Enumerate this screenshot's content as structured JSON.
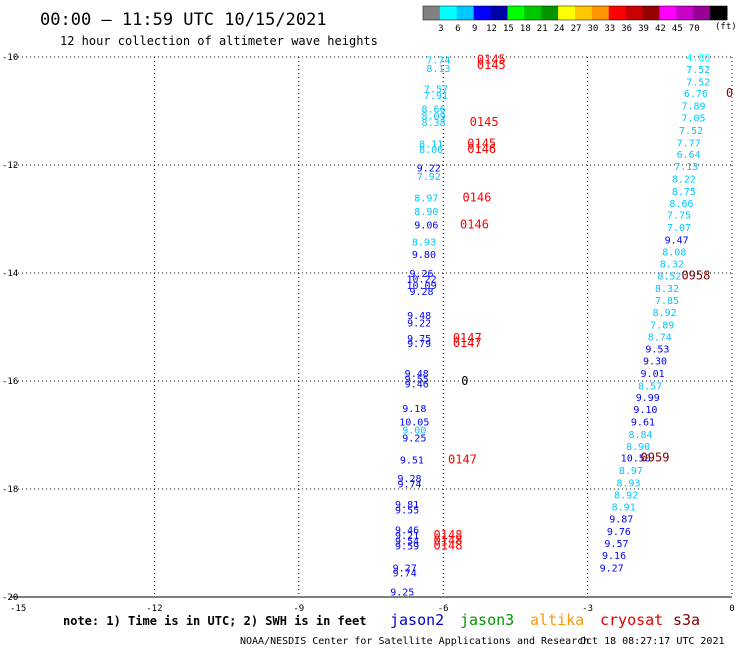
{
  "header": {
    "title": "00:00 – 11:59 UTC 10/15/2021",
    "subtitle": "12 hour collection of altimeter wave heights"
  },
  "colorbar": {
    "unit": "(ft)",
    "colors": [
      "#808080",
      "#00ffff",
      "#00c8ff",
      "#0000ff",
      "#0000aa",
      "#00ff00",
      "#00c800",
      "#009600",
      "#ffff00",
      "#ffc800",
      "#ff9600",
      "#ff0000",
      "#c80000",
      "#960000",
      "#ff00ff",
      "#c800c8",
      "#960096",
      "#000000"
    ],
    "labels": [
      "3",
      "6",
      "9",
      "12",
      "15",
      "18",
      "21",
      "24",
      "27",
      "30",
      "33",
      "36",
      "39",
      "42",
      "45",
      "70"
    ]
  },
  "chart_data": {
    "type": "scatter",
    "xlim": [
      -15,
      0
    ],
    "ylim": [
      -20,
      -10
    ],
    "x_ticks": [
      "-15",
      "-12",
      "-9",
      "-6",
      "-3",
      "0"
    ],
    "y_ticks": [
      "-10",
      "-12",
      "-14",
      "-16",
      "-18",
      "-20"
    ],
    "grid": true,
    "series": [
      {
        "name": "jason2",
        "points": [
          {
            "x": -6.1,
            "y": -10.05,
            "label": "7.74",
            "color": "#00c8ff"
          },
          {
            "x": -6.1,
            "y": -10.2,
            "label": "8.13",
            "color": "#00c8ff"
          },
          {
            "x": -6.15,
            "y": -10.58,
            "label": "7.57",
            "color": "#00c8ff"
          },
          {
            "x": -6.15,
            "y": -10.7,
            "label": "7.91",
            "color": "#00c8ff"
          },
          {
            "x": -6.2,
            "y": -10.95,
            "label": "8.66",
            "color": "#00c8ff"
          },
          {
            "x": -6.2,
            "y": -11.08,
            "label": "8.09",
            "color": "#00c8ff"
          },
          {
            "x": -6.2,
            "y": -11.2,
            "label": "8.38",
            "color": "#00c8ff"
          },
          {
            "x": -6.25,
            "y": -11.6,
            "label": "8.11",
            "color": "#00c8ff"
          },
          {
            "x": -6.25,
            "y": -11.7,
            "label": "8.06",
            "color": "#00c8ff"
          },
          {
            "x": -6.3,
            "y": -12.05,
            "label": "9.22",
            "color": "#0000ff"
          },
          {
            "x": -6.3,
            "y": -12.2,
            "label": "7.92",
            "color": "#00c8ff"
          },
          {
            "x": -6.35,
            "y": -12.6,
            "label": "8.97",
            "color": "#00c8ff"
          },
          {
            "x": -6.35,
            "y": -12.85,
            "label": "8.90",
            "color": "#00c8ff"
          },
          {
            "x": -6.35,
            "y": -13.1,
            "label": "9.06",
            "color": "#0000ff"
          },
          {
            "x": -6.4,
            "y": -13.42,
            "label": "8.93",
            "color": "#00c8ff"
          },
          {
            "x": -6.4,
            "y": -13.65,
            "label": "9.80",
            "color": "#0000ff"
          },
          {
            "x": -6.45,
            "y": -14.0,
            "label": "9.26",
            "color": "#0000ff"
          },
          {
            "x": -6.45,
            "y": -14.1,
            "label": "10.22",
            "color": "#0000ff"
          },
          {
            "x": -6.45,
            "y": -14.22,
            "label": "10.09",
            "color": "#0000ff"
          },
          {
            "x": -6.45,
            "y": -14.33,
            "label": "9.28",
            "color": "#0000ff"
          },
          {
            "x": -6.5,
            "y": -14.78,
            "label": "9.48",
            "color": "#0000ff"
          },
          {
            "x": -6.5,
            "y": -14.92,
            "label": "9.22",
            "color": "#0000ff"
          },
          {
            "x": -6.5,
            "y": -15.2,
            "label": "9.75",
            "color": "#0000ff"
          },
          {
            "x": -6.5,
            "y": -15.3,
            "label": "9.79",
            "color": "#0000ff"
          },
          {
            "x": -6.55,
            "y": -15.85,
            "label": "9.48",
            "color": "#0000ff"
          },
          {
            "x": -6.55,
            "y": -15.95,
            "label": "9.55",
            "color": "#0000ff"
          },
          {
            "x": -6.55,
            "y": -16.05,
            "label": "9.46",
            "color": "#0000ff"
          },
          {
            "x": -6.6,
            "y": -16.5,
            "label": "9.18",
            "color": "#0000ff"
          },
          {
            "x": -6.6,
            "y": -16.75,
            "label": "10.05",
            "color": "#0000ff"
          },
          {
            "x": -6.6,
            "y": -16.9,
            "label": "9.00",
            "color": "#00c8ff"
          },
          {
            "x": -6.6,
            "y": -17.05,
            "label": "9.25",
            "color": "#0000ff"
          },
          {
            "x": -6.65,
            "y": -17.45,
            "label": "9.51",
            "color": "#0000ff"
          },
          {
            "x": -6.7,
            "y": -17.8,
            "label": "9.28",
            "color": "#0000ff"
          },
          {
            "x": -6.7,
            "y": -17.9,
            "label": "9.74",
            "color": "#0000ff"
          },
          {
            "x": -6.75,
            "y": -18.28,
            "label": "9.81",
            "color": "#0000ff"
          },
          {
            "x": -6.75,
            "y": -18.38,
            "label": "9.55",
            "color": "#0000ff"
          },
          {
            "x": -6.75,
            "y": -18.75,
            "label": "9.46",
            "color": "#0000ff"
          },
          {
            "x": -6.75,
            "y": -18.85,
            "label": "9.21",
            "color": "#0000ff"
          },
          {
            "x": -6.75,
            "y": -18.95,
            "label": "9.54",
            "color": "#0000ff"
          },
          {
            "x": -6.75,
            "y": -19.05,
            "label": "9.59",
            "color": "#0000ff"
          },
          {
            "x": -6.8,
            "y": -19.45,
            "label": "9.27",
            "color": "#0000ff"
          },
          {
            "x": -6.8,
            "y": -19.55,
            "label": "9.74",
            "color": "#0000ff"
          },
          {
            "x": -6.85,
            "y": -19.9,
            "label": "9.25",
            "color": "#0000ff"
          }
        ]
      },
      {
        "name": "cryosat",
        "points": [
          {
            "x": -0.7,
            "y": -10.0,
            "label": "4.80",
            "color": "#00ffff"
          },
          {
            "x": -0.7,
            "y": -10.22,
            "label": "7.52",
            "color": "#00c8ff"
          },
          {
            "x": -0.7,
            "y": -10.45,
            "label": "7.52",
            "color": "#00c8ff"
          },
          {
            "x": -0.75,
            "y": -10.67,
            "label": "6.76",
            "color": "#00c8ff"
          },
          {
            "x": -0.8,
            "y": -10.9,
            "label": "7.89",
            "color": "#00c8ff"
          },
          {
            "x": -0.8,
            "y": -11.12,
            "label": "7.05",
            "color": "#00c8ff"
          },
          {
            "x": -0.85,
            "y": -11.35,
            "label": "7.52",
            "color": "#00c8ff"
          },
          {
            "x": -0.9,
            "y": -11.58,
            "label": "7.77",
            "color": "#00c8ff"
          },
          {
            "x": -0.9,
            "y": -11.8,
            "label": "6.64",
            "color": "#00c8ff"
          },
          {
            "x": -0.95,
            "y": -12.02,
            "label": "7.13",
            "color": "#00c8ff"
          },
          {
            "x": -1.0,
            "y": -12.25,
            "label": "8.22",
            "color": "#00c8ff"
          },
          {
            "x": -1.0,
            "y": -12.48,
            "label": "8.75",
            "color": "#00c8ff"
          },
          {
            "x": -1.05,
            "y": -12.7,
            "label": "8.66",
            "color": "#00c8ff"
          },
          {
            "x": -1.1,
            "y": -12.92,
            "label": "7.75",
            "color": "#00c8ff"
          },
          {
            "x": -1.1,
            "y": -13.15,
            "label": "7.07",
            "color": "#00c8ff"
          },
          {
            "x": -1.15,
            "y": -13.38,
            "label": "9.47",
            "color": "#0000ff"
          },
          {
            "x": -1.2,
            "y": -13.6,
            "label": "8.08",
            "color": "#00c8ff"
          },
          {
            "x": -1.25,
            "y": -13.82,
            "label": "8.32",
            "color": "#00c8ff"
          },
          {
            "x": -1.3,
            "y": -14.05,
            "label": "8.52",
            "color": "#00c8ff"
          },
          {
            "x": -1.35,
            "y": -14.28,
            "label": "8.32",
            "color": "#00c8ff"
          },
          {
            "x": -1.35,
            "y": -14.5,
            "label": "7.85",
            "color": "#00c8ff"
          },
          {
            "x": -1.4,
            "y": -14.72,
            "label": "8.92",
            "color": "#00c8ff"
          },
          {
            "x": -1.45,
            "y": -14.95,
            "label": "7.89",
            "color": "#00c8ff"
          },
          {
            "x": -1.5,
            "y": -15.18,
            "label": "8.74",
            "color": "#00c8ff"
          },
          {
            "x": -1.55,
            "y": -15.4,
            "label": "9.53",
            "color": "#0000ff"
          },
          {
            "x": -1.6,
            "y": -15.62,
            "label": "9.30",
            "color": "#0000ff"
          },
          {
            "x": -1.65,
            "y": -15.85,
            "label": "9.01",
            "color": "#0000ff"
          },
          {
            "x": -1.7,
            "y": -16.08,
            "label": "8.57",
            "color": "#00c8ff"
          },
          {
            "x": -1.75,
            "y": -16.3,
            "label": "9.99",
            "color": "#0000ff"
          },
          {
            "x": -1.8,
            "y": -16.52,
            "label": "9.10",
            "color": "#0000ff"
          },
          {
            "x": -1.85,
            "y": -16.75,
            "label": "9.61",
            "color": "#0000ff"
          },
          {
            "x": -1.9,
            "y": -16.98,
            "label": "8.84",
            "color": "#00c8ff"
          },
          {
            "x": -1.95,
            "y": -17.2,
            "label": "8.90",
            "color": "#00c8ff"
          },
          {
            "x": -2.0,
            "y": -17.42,
            "label": "10.50",
            "color": "#0000ff"
          },
          {
            "x": -2.1,
            "y": -17.65,
            "label": "8.97",
            "color": "#00c8ff"
          },
          {
            "x": -2.15,
            "y": -17.88,
            "label": "8.93",
            "color": "#00c8ff"
          },
          {
            "x": -2.2,
            "y": -18.1,
            "label": "8.92",
            "color": "#00c8ff"
          },
          {
            "x": -2.25,
            "y": -18.32,
            "label": "8.91",
            "color": "#00c8ff"
          },
          {
            "x": -2.3,
            "y": -18.55,
            "label": "9.87",
            "color": "#0000ff"
          },
          {
            "x": -2.35,
            "y": -18.78,
            "label": "9.76",
            "color": "#0000ff"
          },
          {
            "x": -2.4,
            "y": -19.0,
            "label": "9.57",
            "color": "#0000ff"
          },
          {
            "x": -2.45,
            "y": -19.22,
            "label": "9.16",
            "color": "#0000ff"
          },
          {
            "x": -2.5,
            "y": -19.45,
            "label": "9.27",
            "color": "#0000ff"
          }
        ]
      }
    ],
    "time_labels": [
      {
        "x": -5.0,
        "y": -10.05,
        "text": "0145",
        "color": "#ff0000"
      },
      {
        "x": -5.0,
        "y": -10.15,
        "text": "0145",
        "color": "#ff0000"
      },
      {
        "x": -5.15,
        "y": -11.2,
        "text": "0145",
        "color": "#ff0000"
      },
      {
        "x": -5.2,
        "y": -11.6,
        "text": "0145",
        "color": "#ff0000"
      },
      {
        "x": -5.2,
        "y": -11.7,
        "text": "0146",
        "color": "#ff0000"
      },
      {
        "x": -5.3,
        "y": -12.6,
        "text": "0146",
        "color": "#ff0000"
      },
      {
        "x": -5.35,
        "y": -13.1,
        "text": "0146",
        "color": "#ff0000"
      },
      {
        "x": -5.5,
        "y": -15.2,
        "text": "0147",
        "color": "#ff0000"
      },
      {
        "x": -5.5,
        "y": -15.3,
        "text": "0147",
        "color": "#ff0000"
      },
      {
        "x": -5.55,
        "y": -16.0,
        "text": "0",
        "color": "#000000"
      },
      {
        "x": -5.6,
        "y": -17.45,
        "text": "0147",
        "color": "#ff0000"
      },
      {
        "x": -5.9,
        "y": -18.85,
        "text": "0148",
        "color": "#ff0000"
      },
      {
        "x": -5.9,
        "y": -18.95,
        "text": "0148",
        "color": "#ff0000"
      },
      {
        "x": -5.9,
        "y": -19.05,
        "text": "0148",
        "color": "#ff0000"
      },
      {
        "x": -0.05,
        "y": -10.67,
        "text": "0",
        "color": "#800000"
      },
      {
        "x": -0.75,
        "y": -14.05,
        "text": "0958",
        "color": "#800000"
      },
      {
        "x": -1.6,
        "y": -17.42,
        "text": "0959",
        "color": "#800000"
      }
    ]
  },
  "footer": {
    "note": "note: 1) Time is in UTC; 2) SWH is in feet",
    "legend": [
      {
        "label": "jason2",
        "color": "#0000cc"
      },
      {
        "label": "jason3",
        "color": "#009600"
      },
      {
        "label": "altika",
        "color": "#ff9600"
      },
      {
        "label": "cryosat",
        "color": "#e00000"
      },
      {
        "label": "s3a",
        "color": "#800000"
      }
    ],
    "credit": "NOAA/NESDIS Center for Satellite Applications and Research",
    "timestamp": "Oct 18 08:27:17 UTC 2021"
  }
}
